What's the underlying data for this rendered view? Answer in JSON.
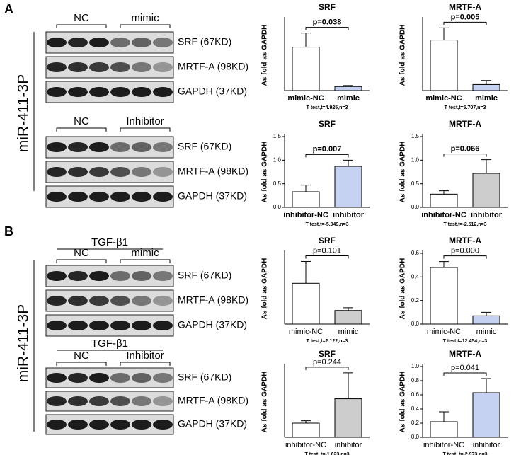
{
  "panels": [
    {
      "label": "A",
      "side_label": "miR-411-3P",
      "blots": [
        {
          "groups": [
            "NC",
            "mimic"
          ],
          "rows": [
            "SRF (67KD)",
            "MRTF-A (98KD)",
            "GAPDH (37KD)"
          ]
        },
        {
          "groups": [
            "NC",
            "Inhibitor"
          ],
          "rows": [
            "SRF (67KD)",
            "MRTF-A  (98KD)",
            "GAPDH (37KD)"
          ]
        }
      ]
    },
    {
      "label": "B",
      "side_label": "miR-411-3P",
      "blots": [
        {
          "treatment": "TGF-β1",
          "groups": [
            "NC",
            "mimic"
          ],
          "rows": [
            "SRF (67KD)",
            "MRTF-A  (98KD)",
            "GAPDH (37KD)"
          ]
        },
        {
          "treatment": "TGF-β1",
          "groups": [
            "NC",
            "Inhibitor"
          ],
          "rows": [
            "SRF (67KD)",
            "MRTF-A  (98KD)",
            "GAPDH (37KD)"
          ]
        }
      ]
    }
  ],
  "chart_data": [
    {
      "type": "bar",
      "title": "SRF",
      "ylabel": "As fold as GAPDH",
      "categories": [
        "mimic-NC",
        "mimic"
      ],
      "values": [
        0.43,
        0.04
      ],
      "errors": [
        0.14,
        0.01
      ],
      "colors": [
        "#ffffff",
        "#c6d2f2"
      ],
      "annotation": "p=0.038",
      "note": "T test,t=4.925,n=3",
      "ylim": [
        0,
        0.7
      ],
      "bold": true
    },
    {
      "type": "bar",
      "title": "MRTF-A",
      "ylabel": "As fold as GAPDH",
      "categories": [
        "mimic-NC",
        "mimic"
      ],
      "values": [
        0.5,
        0.06
      ],
      "errors": [
        0.12,
        0.04
      ],
      "colors": [
        "#ffffff",
        "#c6d2f2"
      ],
      "annotation": "p=0.005",
      "note": "T test,t=5.707,n=3",
      "ylim": [
        0,
        0.7
      ],
      "bold": true
    },
    {
      "type": "bar",
      "title": "SRF",
      "ylabel": "As fold as GAPDH",
      "categories": [
        "inhibitor-NC",
        "inhibitor"
      ],
      "values": [
        0.33,
        0.87
      ],
      "errors": [
        0.14,
        0.13
      ],
      "colors": [
        "#ffffff",
        "#c6d2f2"
      ],
      "annotation": "p=0.007",
      "note": "T test,t=-5.049,n=3",
      "ylim": [
        0,
        1.5
      ],
      "yticks": [
        {
          "value": 0,
          "label": "0.0"
        },
        0.5,
        {
          "value": 1,
          "label": "1.0"
        },
        1.5
      ],
      "bold": true
    },
    {
      "type": "bar",
      "title": "MRTF-A",
      "ylabel": "As fold as GAPDH",
      "categories": [
        "inhibitor-NC",
        "inhibitor"
      ],
      "values": [
        0.28,
        0.72
      ],
      "errors": [
        0.07,
        0.29
      ],
      "colors": [
        "#ffffff",
        "#cccccc"
      ],
      "annotation": "p=0.066",
      "note": "T test,t=-2.512,n=3",
      "ylim": [
        0,
        1.5
      ],
      "yticks": [
        {
          "value": 0,
          "label": "0.0"
        },
        0.5,
        {
          "value": 1,
          "label": "1.0"
        },
        1.5
      ],
      "bold": true
    },
    {
      "type": "bar",
      "title": "SRF",
      "ylabel": "As fold as GAPDH",
      "categories": [
        "mimic-NC",
        "mimic"
      ],
      "values": [
        0.75,
        0.25
      ],
      "errors": [
        0.4,
        0.05
      ],
      "colors": [
        "#ffffff",
        "#cccccc"
      ],
      "annotation": "p=0.101",
      "note": "T test,t=2.122,n=3",
      "ylim": [
        0,
        1.3
      ],
      "bold": false
    },
    {
      "type": "bar",
      "title": "MRTF-A",
      "ylabel": "As fold as GAPDH",
      "categories": [
        "mimic-NC",
        "mimic"
      ],
      "values": [
        0.48,
        0.07
      ],
      "errors": [
        0.05,
        0.03
      ],
      "colors": [
        "#ffffff",
        "#c6d2f2"
      ],
      "annotation": "p=0.000",
      "note": "T test,t=12.454,n=3",
      "ylim": [
        0,
        0.6
      ],
      "yticks": [
        {
          "value": 0,
          "label": "0.0"
        },
        0.2,
        0.4,
        0.6
      ],
      "bold": false
    },
    {
      "type": "bar",
      "title": "SRF",
      "ylabel": "As fold as GAPDH",
      "categories": [
        "inhibitor-NC",
        "inhibitor"
      ],
      "values": [
        0.18,
        0.49
      ],
      "errors": [
        0.03,
        0.33
      ],
      "colors": [
        "#ffffff",
        "#cccccc"
      ],
      "annotation": "p=0.244",
      "note": "T test, t=-1.623,n=3",
      "ylim": [
        0,
        0.9
      ],
      "bold": false
    },
    {
      "type": "bar",
      "title": "MRTF-A",
      "ylabel": "As fold as GAPDH",
      "categories": [
        "inhibitor-NC",
        "inhibitor"
      ],
      "values": [
        0.22,
        0.63
      ],
      "errors": [
        0.14,
        0.2
      ],
      "colors": [
        "#ffffff",
        "#c6d2f2"
      ],
      "annotation": "p=0.041",
      "note": "T test, t=-2.973,n=3",
      "ylim": [
        0,
        1
      ],
      "yticks": [
        {
          "value": 0,
          "label": "0.0"
        },
        0.2,
        0.4,
        0.6,
        0.8,
        {
          "value": 1,
          "label": "1.0"
        }
      ],
      "bold": false
    }
  ]
}
